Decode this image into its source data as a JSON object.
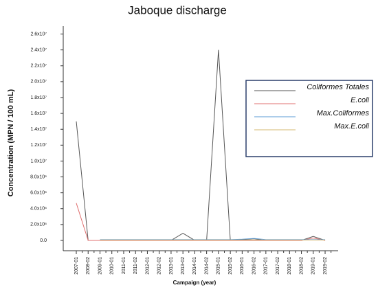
{
  "chart_data": {
    "type": "line",
    "title": "Jaboque discharge",
    "x_label": "Campaign (year)",
    "y_label": "Concentration (MPN / 100 mL)",
    "categories": [
      "2007-01",
      "2008-02",
      "2009-01",
      "2010-01",
      "2011-01",
      "2011-02",
      "2012-01",
      "2012-02",
      "2013-01",
      "2013-02",
      "2014-01",
      "2014-02",
      "2015-01",
      "2015-02",
      "2016-01",
      "2016-02",
      "2017-01",
      "2017-02",
      "2018-01",
      "2018-02",
      "2019-01",
      "2019-02"
    ],
    "series": [
      {
        "name": "Coliformes Totales",
        "color": "#555555",
        "values": [
          15000000,
          0,
          0,
          0,
          0,
          0,
          0,
          0,
          0,
          900000,
          0,
          0,
          24000000,
          0,
          100000,
          200000,
          0,
          0,
          0,
          0,
          500000,
          0
        ]
      },
      {
        "name": "E.coli",
        "color": "#e07070",
        "values": [
          4700000,
          0,
          0,
          0,
          0,
          0,
          0,
          0,
          0,
          0,
          0,
          0,
          0,
          0,
          0,
          0,
          0,
          0,
          0,
          0,
          300000,
          0
        ]
      },
      {
        "name": "Max.Coliformes",
        "color": "#5b9bd5",
        "values": [
          null,
          null,
          100000,
          100000,
          100000,
          100000,
          100000,
          100000,
          100000,
          100000,
          100000,
          100000,
          100000,
          100000,
          150000,
          250000,
          100000,
          100000,
          100000,
          100000,
          100000,
          100000
        ]
      },
      {
        "name": "Max.E.coli",
        "color": "#d4b870",
        "values": [
          null,
          null,
          50000,
          50000,
          50000,
          50000,
          50000,
          50000,
          50000,
          50000,
          50000,
          50000,
          50000,
          50000,
          50000,
          50000,
          50000,
          50000,
          50000,
          50000,
          50000,
          50000
        ]
      }
    ],
    "ylim": [
      -1300000,
      27000000
    ],
    "yticks": [
      {
        "value": 0,
        "label": "0.0"
      },
      {
        "value": 2000000,
        "label": "2.0x10⁶"
      },
      {
        "value": 4000000,
        "label": "4.0x10⁶"
      },
      {
        "value": 6000000,
        "label": "6.0x10⁶"
      },
      {
        "value": 8000000,
        "label": "8.0x10⁶"
      },
      {
        "value": 10000000,
        "label": "1.0x10⁷"
      },
      {
        "value": 12000000,
        "label": "1.2x10⁷"
      },
      {
        "value": 14000000,
        "label": "1.4x10⁷"
      },
      {
        "value": 16000000,
        "label": "1.6x10⁷"
      },
      {
        "value": 18000000,
        "label": "1.8x10⁷"
      },
      {
        "value": 20000000,
        "label": "2.0x10⁷"
      },
      {
        "value": 22000000,
        "label": "2.2x10⁷"
      },
      {
        "value": 24000000,
        "label": "2.4x10⁷"
      },
      {
        "value": 26000000,
        "label": "2.6x10⁷"
      }
    ],
    "grid": false,
    "legend": "right"
  }
}
